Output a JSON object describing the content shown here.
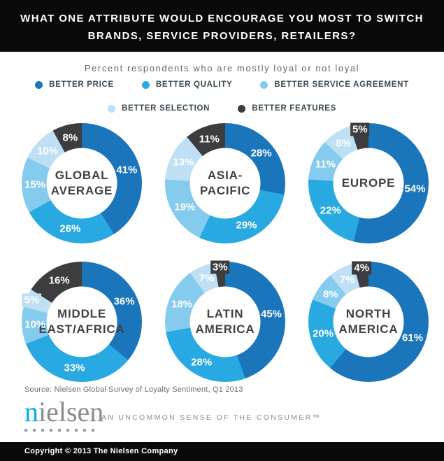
{
  "header": {
    "title_line1": "WHAT ONE ATTRIBUTE WOULD ENCOURAGE YOU MOST TO SWITCH",
    "title_line2": "BRANDS, SERVICE PROVIDERS, RETAILERS?"
  },
  "subtitle": "Percent respondents who are mostly loyal or not loyal",
  "chart_data": {
    "type": "pie",
    "variant": "donut",
    "title": "What one attribute would encourage you most to switch brands, service providers, retailers?",
    "subtitle": "Percent respondents who are mostly loyal or not loyal",
    "legend_position": "top",
    "categories": [
      "BETTER PRICE",
      "BETTER QUALITY",
      "BETTER SERVICE AGREEMENT",
      "BETTER SELECTION",
      "BETTER FEATURES"
    ],
    "colors": [
      "#1b75bb",
      "#29a9e1",
      "#85cbee",
      "#bfe0f4",
      "#3d3d3f"
    ],
    "charts": [
      {
        "title": "GLOBAL AVERAGE",
        "title_lines": [
          "GLOBAL",
          "AVERAGE"
        ],
        "values": [
          41,
          26,
          15,
          10,
          8
        ]
      },
      {
        "title": "ASIA-PACIFIC",
        "title_lines": [
          "ASIA-",
          "PACIFIC"
        ],
        "values": [
          28,
          29,
          19,
          13,
          11
        ]
      },
      {
        "title": "EUROPE",
        "title_lines": [
          "EUROPE"
        ],
        "values": [
          54,
          22,
          11,
          8,
          5
        ]
      },
      {
        "title": "MIDDLE EAST/AFRICA",
        "title_lines": [
          "MIDDLE",
          "EAST/AFRICA"
        ],
        "values": [
          36,
          33,
          10,
          5,
          16
        ]
      },
      {
        "title": "LATIN AMERICA",
        "title_lines": [
          "LATIN",
          "AMERICA"
        ],
        "values": [
          45,
          28,
          18,
          7,
          3
        ]
      },
      {
        "title": "NORTH AMERICA",
        "title_lines": [
          "NORTH",
          "AMERICA"
        ],
        "values": [
          61,
          20,
          8,
          7,
          4
        ]
      }
    ]
  },
  "source": "Source: Nielsen Global Survey of Loyalty Sentiment, Q1 2013",
  "logo": {
    "brand_first_letter": "n",
    "brand_rest": "ielsen",
    "tagline": "AN UNCOMMON SENSE OF THE CONSUMER™"
  },
  "footer": {
    "copyright": "Copyright © 2013 The Nielsen Company"
  }
}
